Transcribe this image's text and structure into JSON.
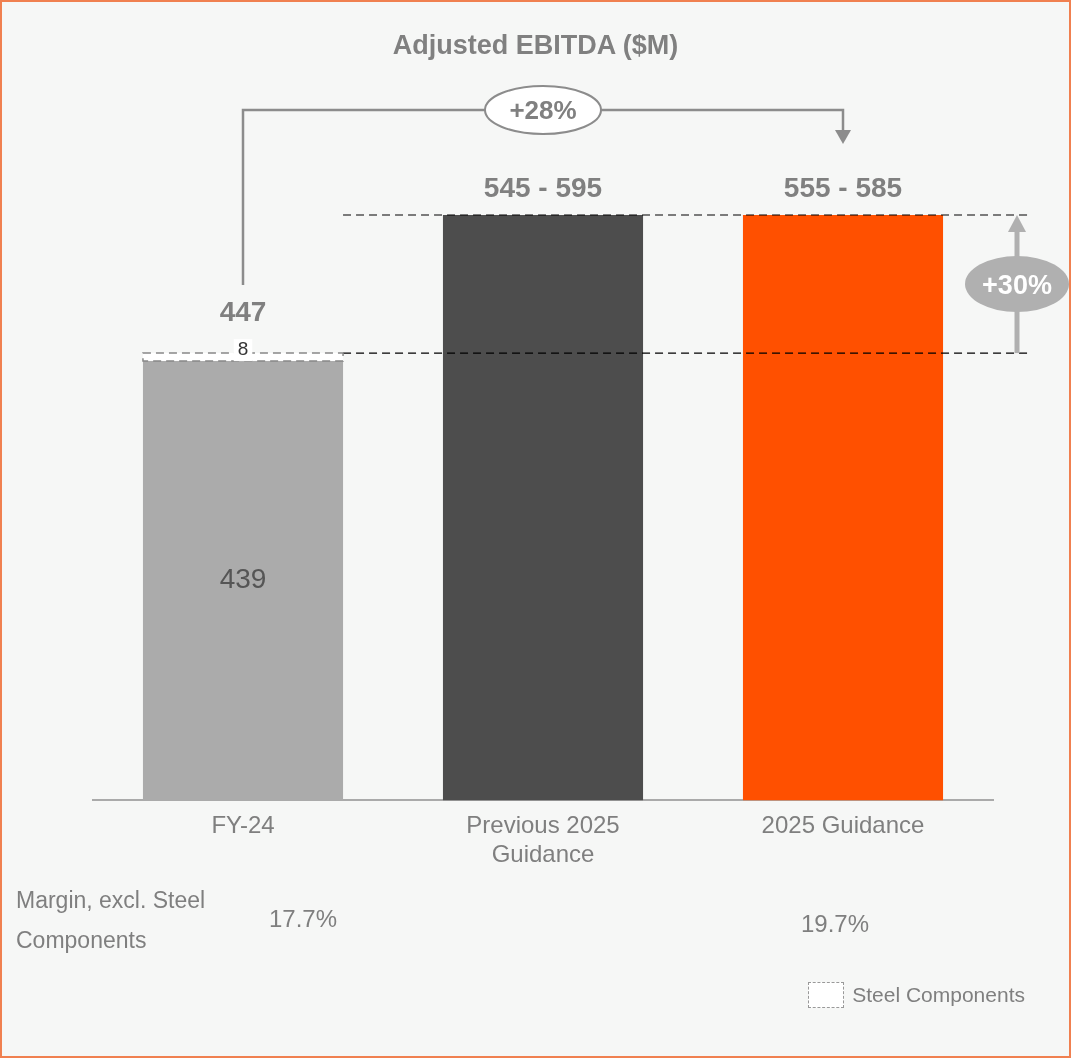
{
  "chart_data": {
    "type": "bar",
    "title": "Adjusted EBITDA ($M)",
    "categories": [
      "FY-24",
      "Previous 2025 Guidance",
      "2025 Guidance"
    ],
    "stacked": true,
    "series": [
      {
        "colors": [
          "#ababab",
          "#4d4d4d",
          "#ff5000"
        ],
        "values": [
          439,
          585,
          585
        ],
        "value_labels": [
          "439",
          null,
          null
        ]
      },
      {
        "name": "Steel Components",
        "color": "#ffffff",
        "line_style": "dashed",
        "values": [
          8,
          null,
          null
        ],
        "value_labels": [
          "8",
          null,
          null
        ]
      }
    ],
    "totals": [
      "447",
      null,
      null
    ],
    "tick_labels": "x",
    "legend": "bottom right",
    "ref_lines": [
      {
        "axis": "y",
        "value": 447,
        "line_style": "dashed",
        "color": "#000000"
      },
      {
        "axis": "y",
        "value": 585,
        "line_style": "dashed",
        "color": "#000000"
      }
    ],
    "annotations": [
      "+28%",
      "+30%",
      "Margin, excl. Steel Components",
      "17.7%",
      "19.7%",
      {
        "text": "545 - 595",
        "x": "Previous 2025 Guidance",
        "y": 585
      },
      {
        "text": "555 - 585",
        "x": "2025 Guidance",
        "y": 585
      }
    ]
  }
}
